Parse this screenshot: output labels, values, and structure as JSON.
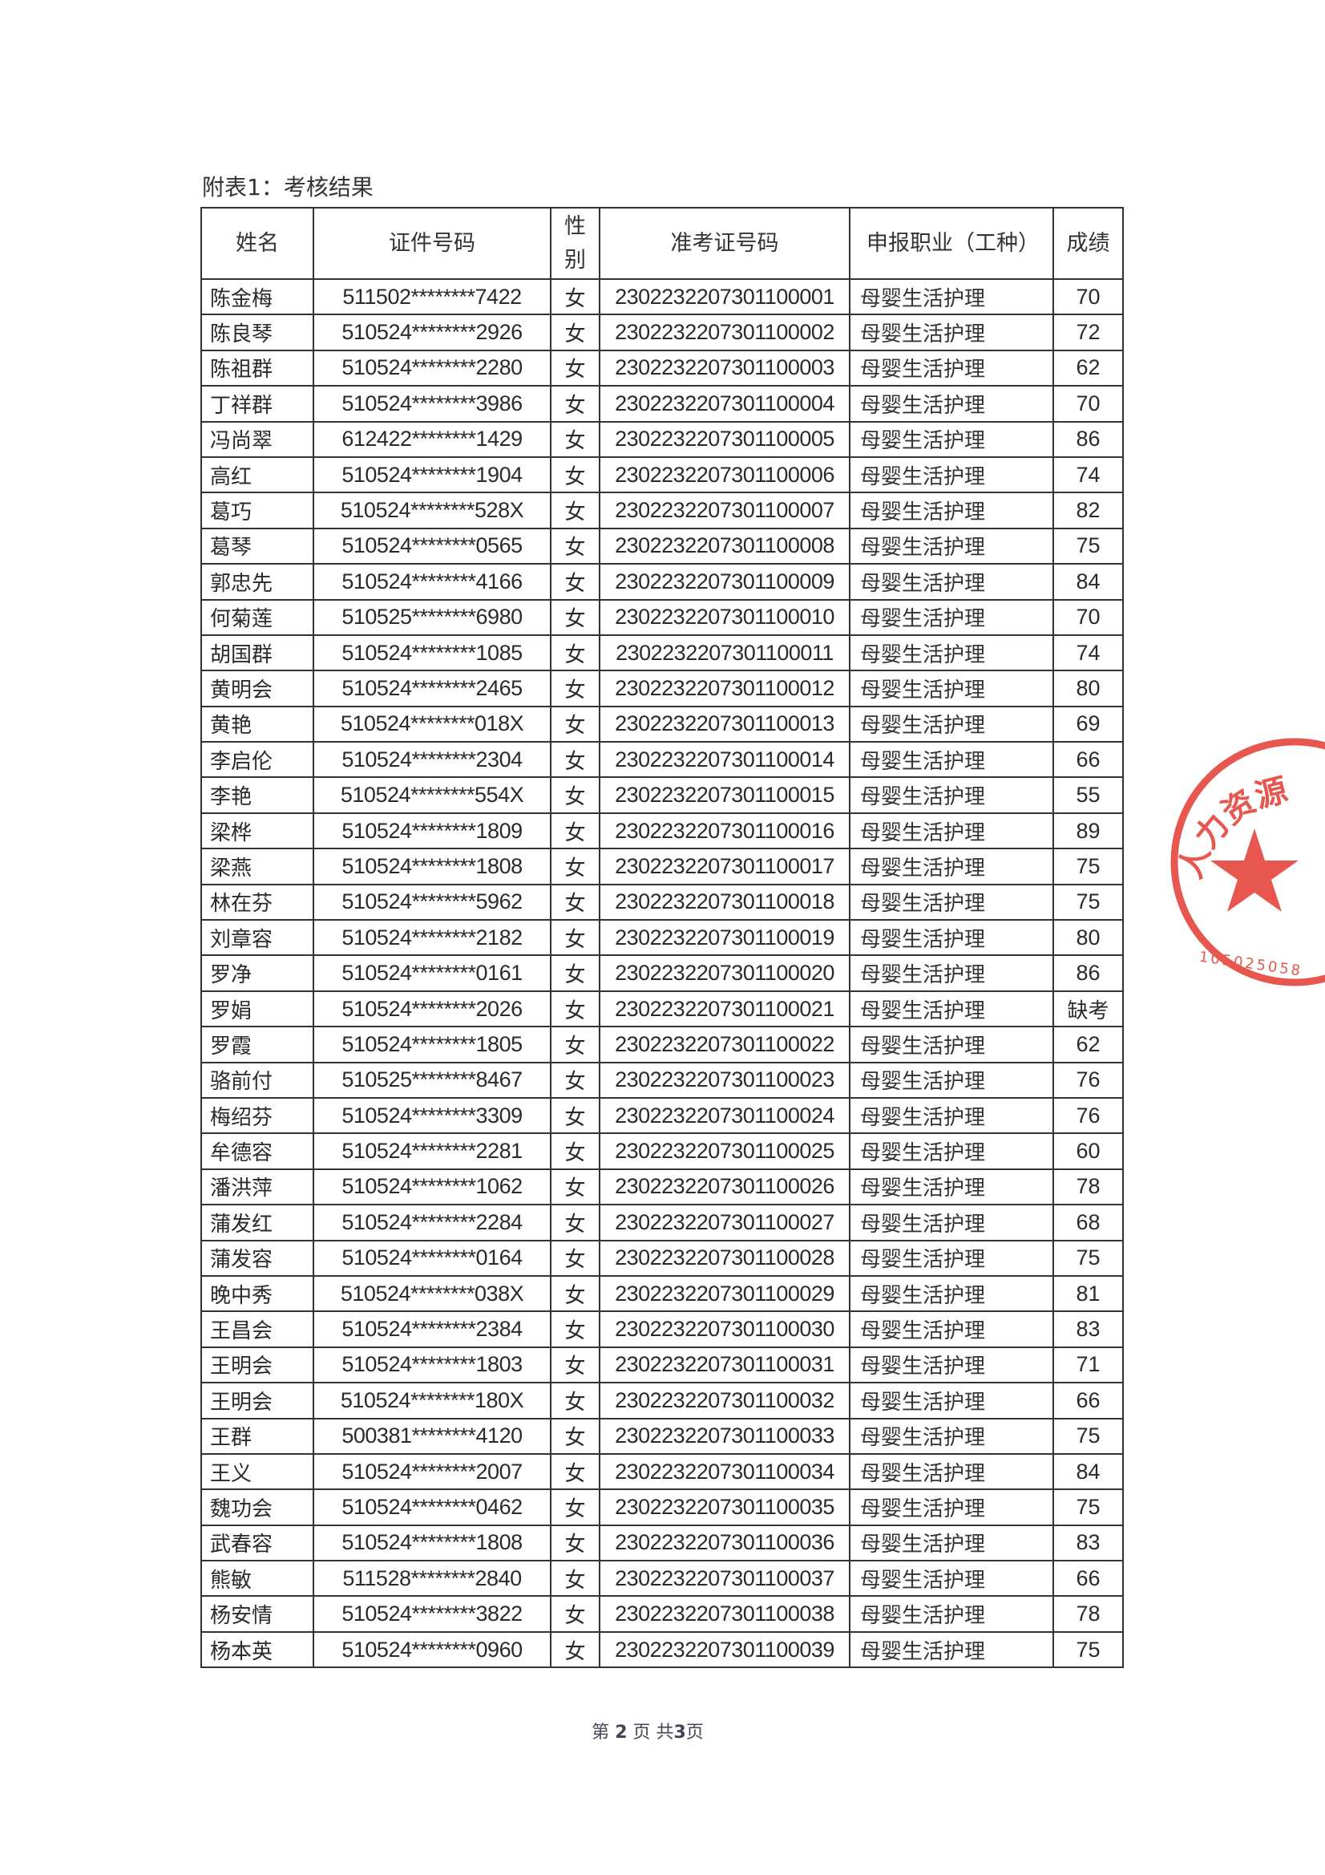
{
  "title": "附表1：考核结果",
  "table": {
    "headers": [
      "姓名",
      "证件号码",
      "性别",
      "准考证号码",
      "申报职业（工种）",
      "成绩"
    ],
    "rows": [
      [
        "陈金梅",
        "511502********7422",
        "女",
        "2302232207301100001",
        "母婴生活护理",
        "70"
      ],
      [
        "陈良琴",
        "510524********2926",
        "女",
        "2302232207301100002",
        "母婴生活护理",
        "72"
      ],
      [
        "陈祖群",
        "510524********2280",
        "女",
        "2302232207301100003",
        "母婴生活护理",
        "62"
      ],
      [
        "丁祥群",
        "510524********3986",
        "女",
        "2302232207301100004",
        "母婴生活护理",
        "70"
      ],
      [
        "冯尚翠",
        "612422********1429",
        "女",
        "2302232207301100005",
        "母婴生活护理",
        "86"
      ],
      [
        "高红",
        "510524********1904",
        "女",
        "2302232207301100006",
        "母婴生活护理",
        "74"
      ],
      [
        "葛巧",
        "510524********528X",
        "女",
        "2302232207301100007",
        "母婴生活护理",
        "82"
      ],
      [
        "葛琴",
        "510524********0565",
        "女",
        "2302232207301100008",
        "母婴生活护理",
        "75"
      ],
      [
        "郭忠先",
        "510524********4166",
        "女",
        "2302232207301100009",
        "母婴生活护理",
        "84"
      ],
      [
        "何菊莲",
        "510525********6980",
        "女",
        "2302232207301100010",
        "母婴生活护理",
        "70"
      ],
      [
        "胡国群",
        "510524********1085",
        "女",
        "2302232207301100011",
        "母婴生活护理",
        "74"
      ],
      [
        "黄明会",
        "510524********2465",
        "女",
        "2302232207301100012",
        "母婴生活护理",
        "80"
      ],
      [
        "黄艳",
        "510524********018X",
        "女",
        "2302232207301100013",
        "母婴生活护理",
        "69"
      ],
      [
        "李启伦",
        "510524********2304",
        "女",
        "2302232207301100014",
        "母婴生活护理",
        "66"
      ],
      [
        "李艳",
        "510524********554X",
        "女",
        "2302232207301100015",
        "母婴生活护理",
        "55"
      ],
      [
        "梁桦",
        "510524********1809",
        "女",
        "2302232207301100016",
        "母婴生活护理",
        "89"
      ],
      [
        "梁燕",
        "510524********1808",
        "女",
        "2302232207301100017",
        "母婴生活护理",
        "75"
      ],
      [
        "林在芬",
        "510524********5962",
        "女",
        "2302232207301100018",
        "母婴生活护理",
        "75"
      ],
      [
        "刘章容",
        "510524********2182",
        "女",
        "2302232207301100019",
        "母婴生活护理",
        "80"
      ],
      [
        "罗净",
        "510524********0161",
        "女",
        "2302232207301100020",
        "母婴生活护理",
        "86"
      ],
      [
        "罗娟",
        "510524********2026",
        "女",
        "2302232207301100021",
        "母婴生活护理",
        "缺考"
      ],
      [
        "罗霞",
        "510524********1805",
        "女",
        "2302232207301100022",
        "母婴生活护理",
        "62"
      ],
      [
        "骆前付",
        "510525********8467",
        "女",
        "2302232207301100023",
        "母婴生活护理",
        "76"
      ],
      [
        "梅绍芬",
        "510524********3309",
        "女",
        "2302232207301100024",
        "母婴生活护理",
        "76"
      ],
      [
        "牟德容",
        "510524********2281",
        "女",
        "2302232207301100025",
        "母婴生活护理",
        "60"
      ],
      [
        "潘洪萍",
        "510524********1062",
        "女",
        "2302232207301100026",
        "母婴生活护理",
        "78"
      ],
      [
        "蒲发红",
        "510524********2284",
        "女",
        "2302232207301100027",
        "母婴生活护理",
        "68"
      ],
      [
        "蒲发容",
        "510524********0164",
        "女",
        "2302232207301100028",
        "母婴生活护理",
        "75"
      ],
      [
        "晚中秀",
        "510524********038X",
        "女",
        "2302232207301100029",
        "母婴生活护理",
        "81"
      ],
      [
        "王昌会",
        "510524********2384",
        "女",
        "2302232207301100030",
        "母婴生活护理",
        "83"
      ],
      [
        "王明会",
        "510524********1803",
        "女",
        "2302232207301100031",
        "母婴生活护理",
        "71"
      ],
      [
        "王明会",
        "510524********180X",
        "女",
        "2302232207301100032",
        "母婴生活护理",
        "66"
      ],
      [
        "王群",
        "500381********4120",
        "女",
        "2302232207301100033",
        "母婴生活护理",
        "75"
      ],
      [
        "王义",
        "510524********2007",
        "女",
        "2302232207301100034",
        "母婴生活护理",
        "84"
      ],
      [
        "魏功会",
        "510524********0462",
        "女",
        "2302232207301100035",
        "母婴生活护理",
        "75"
      ],
      [
        "武春容",
        "510524********1808",
        "女",
        "2302232207301100036",
        "母婴生活护理",
        "83"
      ],
      [
        "熊敏",
        "511528********2840",
        "女",
        "2302232207301100037",
        "母婴生活护理",
        "66"
      ],
      [
        "杨安情",
        "510524********3822",
        "女",
        "2302232207301100038",
        "母婴生活护理",
        "78"
      ],
      [
        "杨本英",
        "510524********0960",
        "女",
        "2302232207301100039",
        "母婴生活护理",
        "75"
      ]
    ]
  },
  "footer": {
    "prefix": "第",
    "page": "2",
    "middle": "页 共",
    "total": "3",
    "suffix": "页"
  },
  "stamp": {
    "text": "人力资源",
    "code": "105025058",
    "color": "#e8574f"
  }
}
